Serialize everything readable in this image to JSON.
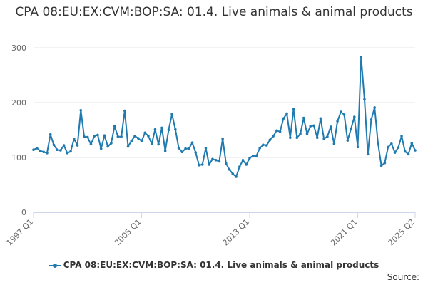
{
  "chart_data": {
    "type": "line",
    "title": "CPA 08:EU:EX:CVM:BOP:SA: 01.4. Live animals & animal products",
    "xlabel": "",
    "ylabel": "",
    "ylim": [
      0,
      300
    ],
    "yticks": [
      "0",
      "100",
      "200",
      "300"
    ],
    "grid": true,
    "legend_position": "bottom",
    "x_start": "1997 Q1",
    "x_end": "2025 Q2",
    "xtick_labels": [
      {
        "label": "1997 Q1",
        "index": 0
      },
      {
        "label": "2005 Q1",
        "index": 32
      },
      {
        "label": "2013 Q1",
        "index": 64
      },
      {
        "label": "2021 Q1",
        "index": 96
      },
      {
        "label": "2025 Q2",
        "index": 113
      }
    ],
    "series": [
      {
        "name": "CPA 08:EU:EX:CVM:BOP:SA: 01.4. Live animals & animal products",
        "color": "#1f7ab0",
        "values": [
          114,
          117,
          112,
          110,
          108,
          142,
          123,
          114,
          113,
          122,
          108,
          111,
          134,
          122,
          186,
          138,
          137,
          124,
          139,
          141,
          116,
          140,
          120,
          126,
          157,
          138,
          138,
          185,
          120,
          130,
          139,
          135,
          130,
          145,
          139,
          125,
          151,
          124,
          154,
          112,
          150,
          179,
          151,
          117,
          110,
          116,
          116,
          127,
          109,
          86,
          87,
          117,
          87,
          97,
          95,
          93,
          134,
          89,
          78,
          70,
          65,
          83,
          95,
          87,
          99,
          103,
          103,
          117,
          123,
          122,
          132,
          139,
          149,
          147,
          171,
          180,
          136,
          188,
          136,
          143,
          172,
          143,
          157,
          158,
          136,
          171,
          134,
          138,
          156,
          125,
          166,
          183,
          178,
          131,
          152,
          174,
          119,
          283,
          206,
          106,
          169,
          191,
          126,
          85,
          90,
          119,
          125,
          109,
          118,
          139,
          111,
          106,
          126,
          113
        ]
      }
    ]
  },
  "legend": {
    "label": "CPA 08:EU:EX:CVM:BOP:SA: 01.4. Live animals & animal products"
  },
  "source": {
    "label": "Source:"
  }
}
